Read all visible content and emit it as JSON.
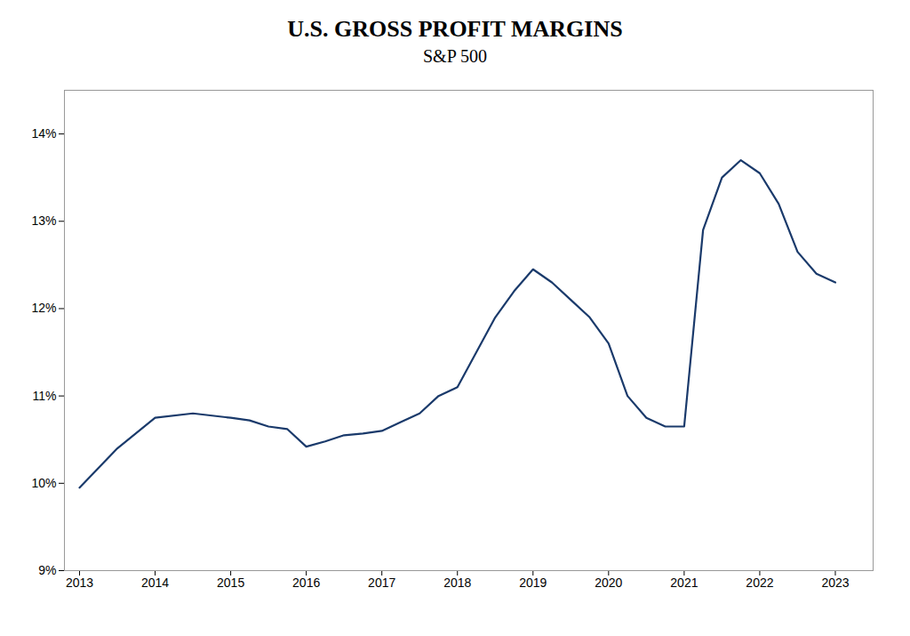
{
  "chart_data": {
    "type": "line",
    "title": "U.S. GROSS PROFIT MARGINS",
    "subtitle": "S&P 500",
    "x": [
      2013,
      2013.5,
      2014,
      2014.5,
      2015,
      2015.25,
      2015.5,
      2015.75,
      2016,
      2016.25,
      2016.5,
      2016.75,
      2017,
      2017.25,
      2017.5,
      2017.75,
      2018,
      2018.25,
      2018.5,
      2018.75,
      2019,
      2019.25,
      2019.5,
      2019.75,
      2020,
      2020.25,
      2020.5,
      2020.75,
      2021,
      2021.25,
      2021.5,
      2021.75,
      2022,
      2022.25,
      2022.5,
      2022.75,
      2023
    ],
    "values": [
      9.95,
      10.4,
      10.75,
      10.8,
      10.75,
      10.72,
      10.65,
      10.62,
      10.42,
      10.48,
      10.55,
      10.57,
      10.6,
      10.7,
      10.8,
      11.0,
      11.1,
      11.5,
      11.9,
      12.2,
      12.45,
      12.3,
      12.1,
      11.9,
      11.6,
      11.0,
      10.75,
      10.65,
      10.65,
      12.9,
      13.5,
      13.7,
      13.55,
      13.2,
      12.65,
      12.4,
      12.3
    ],
    "color": "#1a3a6b",
    "xlim": [
      2012.8,
      2023.5
    ],
    "xticks": [
      2013,
      2014,
      2015,
      2016,
      2017,
      2018,
      2019,
      2020,
      2021,
      2022,
      2023
    ],
    "ylim": [
      9.0,
      14.5
    ],
    "yticks": [
      {
        "value": 9,
        "label": "9%"
      },
      {
        "value": 10,
        "label": "10%"
      },
      {
        "value": 11,
        "label": "11%"
      },
      {
        "value": 12,
        "label": "12%"
      },
      {
        "value": 13,
        "label": "13%"
      },
      {
        "value": 14,
        "label": "14%"
      }
    ],
    "grid": false
  }
}
